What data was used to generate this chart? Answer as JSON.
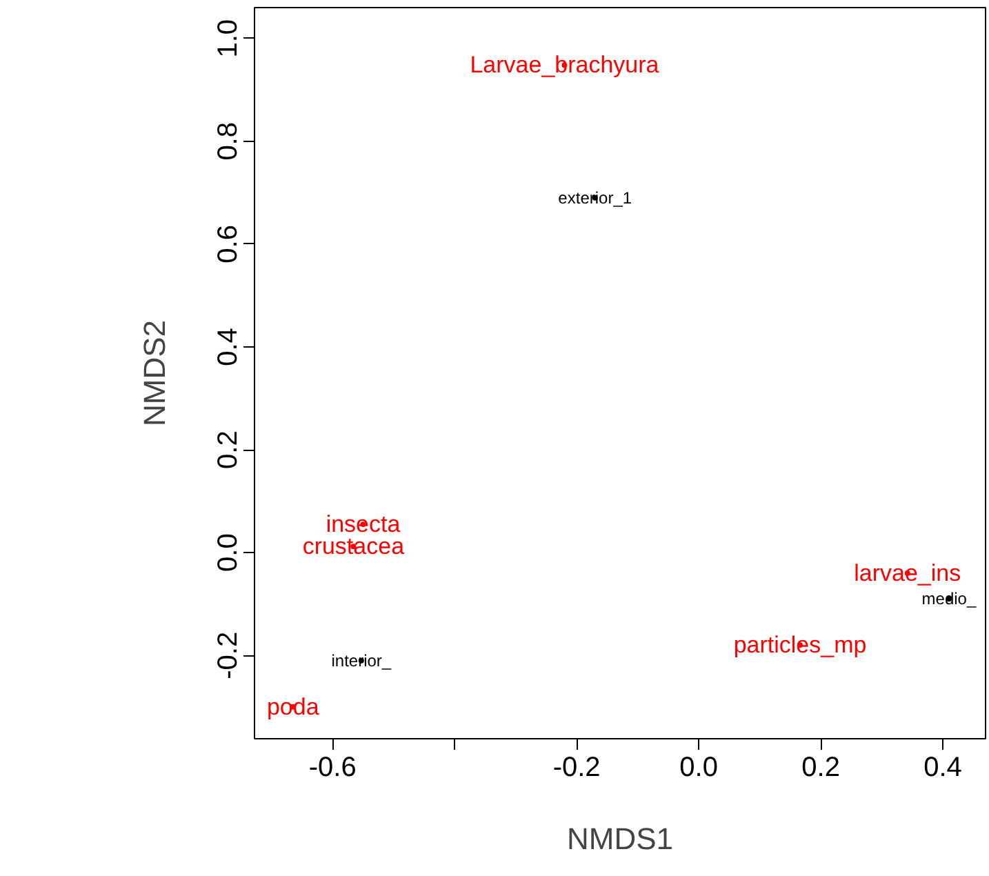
{
  "chart_data": {
    "type": "scatter",
    "xlabel": "NMDS1",
    "ylabel": "NMDS2",
    "xlim": [
      -0.728,
      0.47
    ],
    "ylim": [
      -0.362,
      1.06
    ],
    "xticks": [
      -0.6,
      {
        "value": -0.4,
        "label": null
      },
      -0.2,
      {
        "value": 0,
        "label": "0.0"
      },
      0.2,
      0.4
    ],
    "yticks": [
      -0.2,
      {
        "value": 0,
        "label": "0.0"
      },
      0.2,
      0.4,
      0.6,
      0.8,
      {
        "value": 1,
        "label": "1.0"
      }
    ],
    "grid": false,
    "marker": "circle",
    "series": [
      {
        "color": "#ff0000",
        "x": [
          -0.22,
          -0.55,
          -0.566,
          0.342,
          0.166,
          -0.665
        ],
        "values": [
          0.948,
          0.055,
          0.012,
          -0.04,
          -0.18,
          -0.3
        ],
        "value_labels": [
          "Larvae_brachyura",
          "insecta",
          "crustacea",
          "larvae_ins",
          "particles_mp",
          "poda"
        ]
      },
      {
        "color": "#000000",
        "x": [
          -0.17,
          -0.553,
          0.41
        ],
        "values": [
          0.69,
          -0.21,
          -0.09
        ],
        "value_labels": [
          "exterior_1",
          "interior_",
          "medio_"
        ]
      }
    ]
  }
}
